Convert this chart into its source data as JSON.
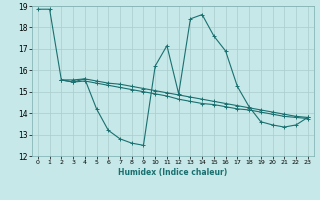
{
  "xlabel": "Humidex (Indice chaleur)",
  "xlim": [
    -0.5,
    23.5
  ],
  "ylim": [
    12,
    19
  ],
  "yticks": [
    12,
    13,
    14,
    15,
    16,
    17,
    18,
    19
  ],
  "xticks": [
    0,
    1,
    2,
    3,
    4,
    5,
    6,
    7,
    8,
    9,
    10,
    11,
    12,
    13,
    14,
    15,
    16,
    17,
    18,
    19,
    20,
    21,
    22,
    23
  ],
  "bg_color": "#c6e8e8",
  "line_color": "#1a7070",
  "grid_color": "#aacccc",
  "series1_x": [
    0,
    1,
    2,
    3,
    4,
    5,
    6,
    7,
    8,
    9,
    10,
    11,
    12,
    13,
    14,
    15,
    16,
    17,
    18,
    19,
    20,
    21,
    22,
    23
  ],
  "series1_y": [
    18.85,
    18.85,
    15.55,
    15.45,
    15.6,
    14.2,
    13.2,
    12.8,
    12.6,
    12.5,
    16.2,
    17.15,
    14.9,
    18.4,
    18.6,
    17.6,
    16.9,
    15.25,
    14.3,
    13.6,
    13.45,
    13.35,
    13.45,
    13.8
  ],
  "series2_x": [
    2,
    3,
    4,
    5,
    6,
    7,
    8,
    9,
    10,
    11,
    12,
    13,
    14,
    15,
    16,
    17,
    18,
    19,
    20,
    21,
    22,
    23
  ],
  "series2_y": [
    15.55,
    15.45,
    15.5,
    15.4,
    15.3,
    15.2,
    15.1,
    15.0,
    14.9,
    14.8,
    14.65,
    14.55,
    14.45,
    14.4,
    14.3,
    14.2,
    14.15,
    14.05,
    13.95,
    13.85,
    13.8,
    13.75
  ],
  "series3_x": [
    2,
    3,
    4,
    5,
    6,
    7,
    8,
    9,
    10,
    11,
    12,
    13,
    14,
    15,
    16,
    17,
    18,
    19,
    20,
    21,
    22,
    23
  ],
  "series3_y": [
    15.55,
    15.55,
    15.6,
    15.5,
    15.4,
    15.35,
    15.25,
    15.15,
    15.05,
    14.95,
    14.85,
    14.75,
    14.65,
    14.55,
    14.45,
    14.35,
    14.25,
    14.15,
    14.05,
    13.95,
    13.85,
    13.8
  ]
}
